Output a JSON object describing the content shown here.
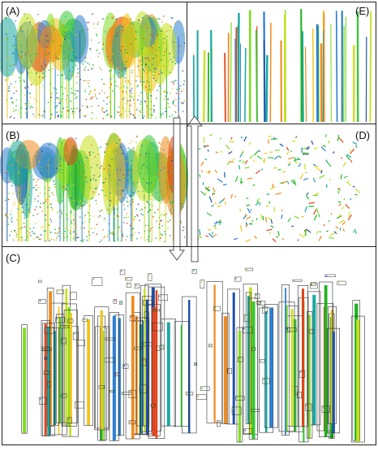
{
  "panels": [
    {
      "key": "A",
      "label": "(A)"
    },
    {
      "key": "B",
      "label": "(B)"
    },
    {
      "key": "C",
      "label": "(C)"
    },
    {
      "key": "D",
      "label": "(D)"
    },
    {
      "key": "E",
      "label": "(E)"
    }
  ],
  "colors": {
    "panel_border": "#222222",
    "arrow_stroke": "#555555",
    "bounding_box": "#333333",
    "point_palette": [
      "#1db31d",
      "#36c836",
      "#7fdc22",
      "#c8e01e",
      "#f0c419",
      "#f08a1e",
      "#e2431a",
      "#1c4fa8",
      "#2f7fd0",
      "#1aa7a0"
    ]
  },
  "icons": {
    "down_arrow": "hollow-down-arrow-icon",
    "up_arrow": "hollow-up-arrow-icon"
  }
}
